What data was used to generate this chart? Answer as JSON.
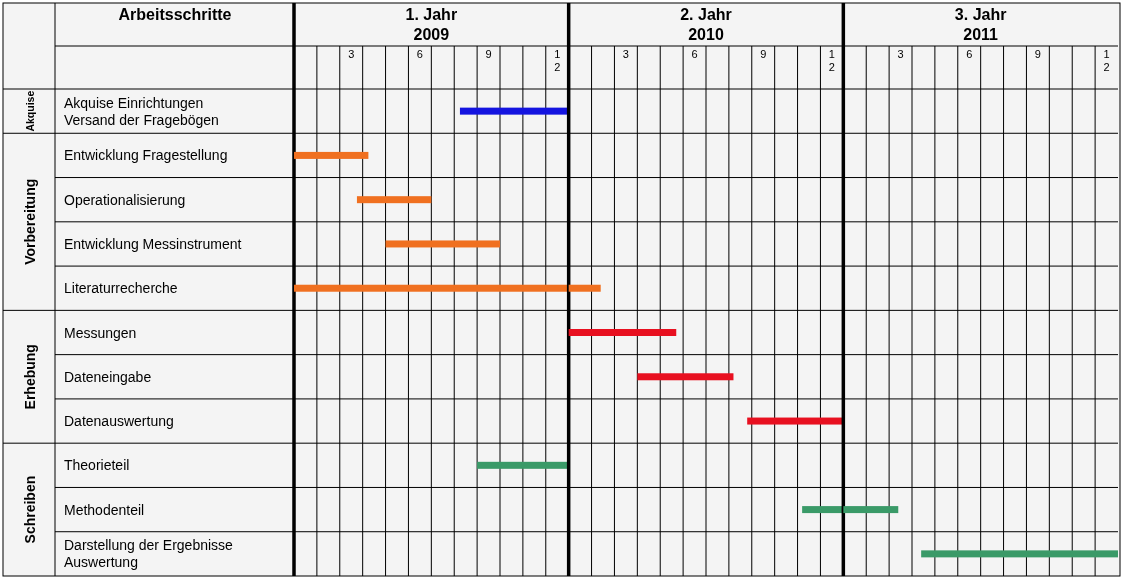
{
  "chart_data": [
    {
      "type": "bar",
      "orientation": "horizontal",
      "title": "1. Jahr\n2009",
      "ylabel": "Arbeitsschritte",
      "categories": [
        "Akquise Einrichtungen\nVersand der Fragebögen",
        "Entwicklung Fragestellung",
        "Operationalisierung",
        "Entwicklung Messinstrument",
        "Literaturrecherche",
        "Messungen",
        "Dateneingabe",
        "Datenauswertung",
        "Theorieteil",
        "Methodenteil",
        "Darstellung der Ergebnisse\nAuswertung"
      ],
      "base": [
        7.75,
        0.5,
        3.25,
        4.5,
        0.5,
        null,
        null,
        null,
        8.5,
        null,
        null
      ],
      "values": [
        4.75,
        3.25,
        3.25,
        5,
        12,
        null,
        null,
        null,
        4,
        null,
        null
      ],
      "colors": [
        "#1414e0",
        "#f07020",
        "#f07020",
        "#f07020",
        "#f07020",
        null,
        null,
        null,
        "#3a9a68",
        null,
        null
      ],
      "xlim": [
        0.5,
        12.5
      ],
      "xticks": [
        3,
        6,
        9,
        12
      ],
      "grid": true,
      "annotations": [
        "Akquise",
        "Vorbereitung",
        "Erhebung",
        "Schreiben"
      ]
    },
    {
      "type": "bar",
      "orientation": "horizontal",
      "title": "2. Jahr\n2010",
      "categories": [
        null,
        null,
        null,
        null,
        null,
        null,
        null,
        null,
        null,
        null,
        null
      ],
      "base": [
        null,
        null,
        null,
        null,
        0.5,
        0.5,
        3.5,
        8.3,
        null,
        10.7,
        null
      ],
      "values": [
        null,
        null,
        null,
        null,
        1.4,
        4.7,
        4.2,
        4.2,
        null,
        1.8,
        null
      ],
      "colors": [
        null,
        null,
        null,
        null,
        "#f07020",
        "#e81020",
        "#e81020",
        "#e81020",
        null,
        "#3a9a68",
        null
      ],
      "xlim": [
        0.5,
        12.5
      ],
      "xticks": [
        3,
        6,
        9,
        12
      ],
      "grid": true,
      "tick_labels": "x"
    },
    {
      "type": "bar",
      "orientation": "horizontal",
      "title": "3. Jahr\n2011",
      "categories": [
        null,
        null,
        null,
        null,
        null,
        null,
        null,
        null,
        null,
        null,
        null
      ],
      "base": [
        null,
        null,
        null,
        null,
        null,
        null,
        null,
        null,
        null,
        0.5,
        3.9
      ],
      "values": [
        null,
        null,
        null,
        null,
        null,
        null,
        null,
        null,
        null,
        2.4,
        8.6
      ],
      "colors": [
        null,
        null,
        null,
        null,
        null,
        null,
        null,
        null,
        null,
        "#3a9a68",
        "#3a9a68"
      ],
      "xlim": [
        0.5,
        12.5
      ],
      "xticks": [
        3,
        6,
        9,
        12
      ],
      "grid": true,
      "tick_labels": "x"
    }
  ]
}
